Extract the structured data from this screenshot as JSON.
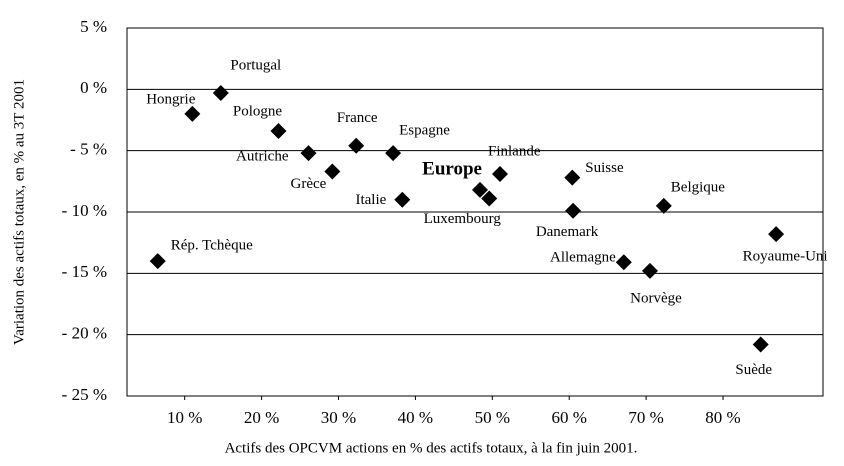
{
  "chart_data": {
    "type": "scatter",
    "x_label": "Actifs des OPCVM actions en % des actifs totaux, à la fin juin 2001.",
    "y_label": "Variation des actifs totaux, en % au 3T 2001",
    "labels": [
      "Portugal",
      "Hongrie",
      "Pologne",
      "Autriche",
      "France",
      "Espagne",
      "Grèce",
      "Italie",
      "Europe",
      "Luxembourg",
      "Finlande",
      "Suisse",
      "Danemark",
      "Belgique",
      "Allemagne",
      "Norvège",
      "Royaume-Uni",
      "Suède",
      "Rép. Tchèque"
    ],
    "x": [
      14.7,
      11.0,
      22.2,
      26.1,
      32.3,
      37.1,
      29.2,
      38.3,
      48.4,
      49.6,
      51.0,
      60.4,
      60.5,
      72.3,
      67.1,
      70.5,
      86.9,
      84.9,
      6.5
    ],
    "values": [
      -0.3,
      -2.0,
      -3.4,
      -5.2,
      -4.6,
      -5.2,
      -6.7,
      -9.0,
      -8.2,
      -8.9,
      -6.9,
      -7.2,
      -9.9,
      -9.5,
      -14.1,
      -14.8,
      -11.8,
      -20.8,
      -14.0
    ],
    "color": "#000000",
    "highlight": "Europe",
    "xlim": [
      2.5,
      93
    ],
    "ylim": [
      -25,
      5
    ],
    "xticks": [
      {
        "value": 10,
        "label": "10 %"
      },
      {
        "value": 20,
        "label": "20 %"
      },
      {
        "value": 30,
        "label": "30 %"
      },
      {
        "value": 40,
        "label": "40 %"
      },
      {
        "value": 50,
        "label": "50 %"
      },
      {
        "value": 60,
        "label": "60 %"
      },
      {
        "value": 70,
        "label": "70 %"
      },
      {
        "value": 80,
        "label": "80 %"
      }
    ],
    "yticks": [
      {
        "value": 5,
        "label": "5 %"
      },
      {
        "value": 0,
        "label": "0 %"
      },
      {
        "value": -5,
        "label": "- 5 %"
      },
      {
        "value": -10,
        "label": "- 10 %"
      },
      {
        "value": -15,
        "label": "- 15 %"
      },
      {
        "value": -20,
        "label": "- 20 %"
      },
      {
        "value": -25,
        "label": "- 25 %"
      }
    ],
    "grid": true
  }
}
